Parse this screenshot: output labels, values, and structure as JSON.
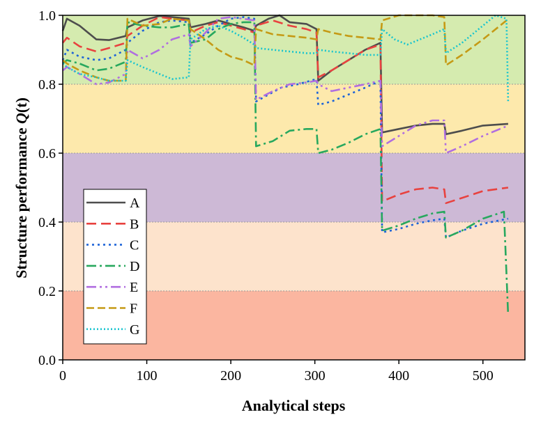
{
  "chart_data": {
    "type": "line",
    "xlabel": "Analytical steps",
    "ylabel_main": "Structure performance ",
    "ylabel_symbol": "Q",
    "ylabel_arg": "(t)",
    "xlim": [
      0,
      550
    ],
    "ylim": [
      0.0,
      1.0
    ],
    "x_ticks": [
      0,
      100,
      200,
      300,
      400,
      500
    ],
    "y_ticks": [
      "0.0",
      "0.2",
      "0.4",
      "0.6",
      "0.8",
      "1.0"
    ],
    "y_tick_values": [
      0,
      0.2,
      0.4,
      0.6,
      0.8,
      1.0
    ],
    "legend_placement": "left",
    "bands": [
      {
        "from": 0.8,
        "to": 1.0,
        "color": "#d5ebaf"
      },
      {
        "from": 0.6,
        "to": 0.8,
        "color": "#fde9ac"
      },
      {
        "from": 0.4,
        "to": 0.6,
        "color": "#cdb9d6"
      },
      {
        "from": 0.2,
        "to": 0.4,
        "color": "#fde3cc"
      },
      {
        "from": 0.0,
        "to": 0.2,
        "color": "#fbb6a0"
      }
    ],
    "series": [
      {
        "name": "A",
        "color": "#4d4d4d",
        "dash": "",
        "x": [
          0,
          5,
          20,
          40,
          55,
          75,
          77,
          95,
          115,
          130,
          150,
          152,
          170,
          185,
          200,
          215,
          228,
          230,
          245,
          258,
          270,
          290,
          302,
          304,
          320,
          340,
          360,
          378,
          380,
          400,
          420,
          440,
          454,
          456,
          475,
          500,
          530
        ],
        "y": [
          0.955,
          0.99,
          0.97,
          0.93,
          0.928,
          0.94,
          0.965,
          0.985,
          0.998,
          0.995,
          0.99,
          0.965,
          0.975,
          0.985,
          0.975,
          0.965,
          0.955,
          0.97,
          0.99,
          1.0,
          0.98,
          0.975,
          0.96,
          0.81,
          0.84,
          0.87,
          0.9,
          0.92,
          0.66,
          0.67,
          0.68,
          0.685,
          0.685,
          0.655,
          0.665,
          0.68,
          0.685
        ]
      },
      {
        "name": "B",
        "color": "#e8423f",
        "dash": "14 7",
        "x": [
          0,
          5,
          20,
          40,
          55,
          75,
          77,
          95,
          115,
          130,
          150,
          152,
          170,
          185,
          200,
          215,
          228,
          230,
          250,
          270,
          290,
          302,
          304,
          320,
          340,
          360,
          378,
          380,
          400,
          420,
          440,
          454,
          456,
          475,
          500,
          530
        ],
        "y": [
          0.92,
          0.935,
          0.91,
          0.895,
          0.905,
          0.92,
          0.94,
          0.97,
          0.995,
          0.99,
          0.985,
          0.95,
          0.97,
          0.98,
          0.97,
          0.96,
          0.95,
          0.97,
          0.985,
          0.97,
          0.96,
          0.95,
          0.82,
          0.84,
          0.87,
          0.9,
          0.915,
          0.46,
          0.48,
          0.495,
          0.5,
          0.495,
          0.455,
          0.47,
          0.49,
          0.5
        ]
      },
      {
        "name": "C",
        "color": "#1c63d8",
        "dash": "3 5",
        "x": [
          0,
          5,
          20,
          40,
          55,
          75,
          77,
          95,
          115,
          130,
          150,
          152,
          170,
          185,
          200,
          215,
          228,
          230,
          245,
          260,
          280,
          302,
          304,
          320,
          340,
          360,
          378,
          380,
          400,
          420,
          440,
          454,
          456,
          475,
          500,
          530
        ],
        "y": [
          0.87,
          0.9,
          0.88,
          0.87,
          0.875,
          0.9,
          0.92,
          0.955,
          0.98,
          0.985,
          0.98,
          0.92,
          0.945,
          0.97,
          0.99,
          0.995,
          0.99,
          0.75,
          0.77,
          0.79,
          0.8,
          0.815,
          0.74,
          0.75,
          0.77,
          0.79,
          0.81,
          0.37,
          0.38,
          0.395,
          0.405,
          0.41,
          0.355,
          0.375,
          0.395,
          0.41
        ]
      },
      {
        "name": "D",
        "color": "#27a85e",
        "dash": "14 5 3 5",
        "x": [
          0,
          5,
          20,
          40,
          55,
          75,
          77,
          95,
          115,
          130,
          150,
          152,
          170,
          185,
          200,
          215,
          228,
          230,
          250,
          270,
          290,
          302,
          304,
          320,
          340,
          360,
          378,
          380,
          400,
          420,
          440,
          454,
          456,
          475,
          500,
          525,
          530
        ],
        "y": [
          0.86,
          0.87,
          0.86,
          0.84,
          0.845,
          0.865,
          0.98,
          0.97,
          0.965,
          0.965,
          0.975,
          0.92,
          0.93,
          0.96,
          0.975,
          0.98,
          0.98,
          0.62,
          0.635,
          0.665,
          0.67,
          0.67,
          0.6,
          0.61,
          0.63,
          0.655,
          0.67,
          0.375,
          0.39,
          0.41,
          0.425,
          0.43,
          0.355,
          0.375,
          0.41,
          0.43,
          0.13
        ]
      },
      {
        "name": "E",
        "color": "#b06ee0",
        "dash": "14 5 3 5 3 5",
        "x": [
          0,
          5,
          20,
          40,
          55,
          75,
          77,
          95,
          115,
          130,
          150,
          152,
          170,
          185,
          200,
          215,
          228,
          230,
          250,
          270,
          290,
          302,
          304,
          320,
          340,
          360,
          378,
          380,
          400,
          420,
          440,
          454,
          456,
          475,
          500,
          530
        ],
        "y": [
          0.84,
          0.85,
          0.83,
          0.8,
          0.805,
          0.83,
          0.9,
          0.875,
          0.9,
          0.93,
          0.945,
          0.91,
          0.95,
          0.99,
          0.995,
          0.99,
          0.985,
          0.755,
          0.78,
          0.8,
          0.805,
          0.81,
          0.8,
          0.78,
          0.79,
          0.8,
          0.81,
          0.62,
          0.65,
          0.68,
          0.695,
          0.695,
          0.6,
          0.62,
          0.65,
          0.68
        ]
      },
      {
        "name": "F",
        "color": "#c59a15",
        "dash": "11 5",
        "x": [
          0,
          5,
          20,
          40,
          55,
          75,
          77,
          95,
          115,
          130,
          150,
          152,
          170,
          185,
          200,
          215,
          228,
          230,
          250,
          270,
          290,
          302,
          304,
          320,
          340,
          360,
          378,
          380,
          400,
          420,
          440,
          454,
          456,
          475,
          500,
          528
        ],
        "y": [
          0.87,
          0.86,
          0.84,
          0.82,
          0.81,
          0.81,
          0.99,
          0.97,
          0.975,
          0.99,
          0.985,
          0.96,
          0.93,
          0.9,
          0.88,
          0.87,
          0.855,
          0.96,
          0.945,
          0.94,
          0.935,
          0.93,
          0.96,
          0.95,
          0.94,
          0.935,
          0.93,
          0.985,
          1.0,
          1.0,
          1.0,
          0.995,
          0.855,
          0.885,
          0.93,
          0.985
        ]
      },
      {
        "name": "G",
        "color": "#17c4cf",
        "dash": "2 3",
        "x": [
          0,
          5,
          20,
          40,
          55,
          75,
          77,
          95,
          115,
          130,
          150,
          152,
          170,
          185,
          200,
          215,
          228,
          230,
          250,
          270,
          290,
          302,
          304,
          320,
          340,
          360,
          378,
          380,
          395,
          410,
          420,
          440,
          454,
          456,
          475,
          500,
          515,
          528,
          530
        ],
        "y": [
          0.86,
          0.85,
          0.83,
          0.82,
          0.81,
          0.81,
          0.87,
          0.85,
          0.83,
          0.815,
          0.82,
          0.93,
          0.96,
          0.97,
          0.955,
          0.935,
          0.915,
          0.905,
          0.9,
          0.895,
          0.89,
          0.89,
          0.9,
          0.895,
          0.89,
          0.885,
          0.885,
          0.96,
          0.93,
          0.915,
          0.925,
          0.945,
          0.96,
          0.89,
          0.92,
          0.97,
          1.0,
          0.99,
          0.75
        ]
      }
    ]
  }
}
